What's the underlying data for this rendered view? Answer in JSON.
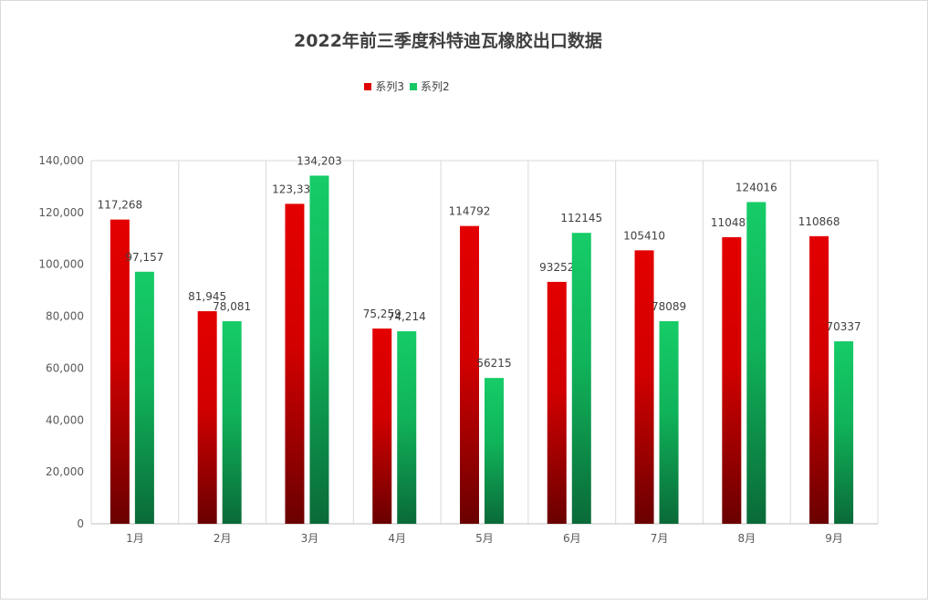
{
  "chart_data": {
    "type": "bar",
    "title": "2022年前三季度科特迪瓦橡胶出口数据",
    "categories": [
      "1月",
      "2月",
      "3月",
      "4月",
      "5月",
      "6月",
      "7月",
      "8月",
      "9月"
    ],
    "series": [
      {
        "name": "系列3",
        "color": "#e00000",
        "values": [
          117268,
          81945,
          123331,
          75259,
          114792,
          93252,
          105410,
          110487,
          110868
        ],
        "labels": [
          "117,268",
          "81,945",
          "123,331",
          "75,259",
          "114792",
          "93252",
          "105410",
          "110487",
          "110868"
        ]
      },
      {
        "name": "系列2",
        "color": "#15c865",
        "values": [
          97157,
          78081,
          134203,
          74214,
          56215,
          112145,
          78089,
          124016,
          70337
        ],
        "labels": [
          "97,157",
          "78,081",
          "134,203",
          "74,214",
          "56215",
          "112145",
          "78089",
          "124016",
          "70337"
        ]
      }
    ],
    "y_ticks": [
      "0",
      "20,000",
      "40,000",
      "60,000",
      "80,000",
      "100,000",
      "120,000",
      "140,000"
    ],
    "ylim": [
      0,
      140000
    ],
    "grid": "vertical category separators",
    "legend_position": "top"
  }
}
